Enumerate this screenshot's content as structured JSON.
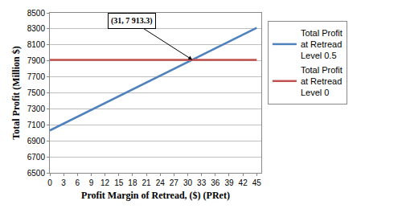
{
  "chart_data": {
    "type": "line",
    "x_label": "Profit Margin of Retread, ($) (PRet)",
    "y_label": "Total Profit (Million $)",
    "x": [
      0,
      3,
      6,
      9,
      12,
      15,
      18,
      21,
      24,
      27,
      30,
      33,
      36,
      39,
      42,
      45
    ],
    "series": [
      {
        "name": "Total Profit at Retread Level 0.5",
        "color": "#4f81bd",
        "values": [
          7030,
          7115,
          7200,
          7286,
          7372,
          7457,
          7543,
          7628,
          7714,
          7800,
          7885,
          7970,
          8056,
          8142,
          8227,
          8313
        ]
      },
      {
        "name": "Total Profit at Retread Level 0",
        "color": "#c0504d",
        "values": [
          7913.3,
          7913.3,
          7913.3,
          7913.3,
          7913.3,
          7913.3,
          7913.3,
          7913.3,
          7913.3,
          7913.3,
          7913.3,
          7913.3,
          7913.3,
          7913.3,
          7913.3,
          7913.3
        ]
      }
    ],
    "xlim": [
      0,
      46
    ],
    "xticks": [
      0,
      3,
      6,
      9,
      12,
      15,
      18,
      21,
      24,
      27,
      30,
      33,
      36,
      39,
      42,
      45
    ],
    "ylim": [
      6500,
      8500
    ],
    "yticks": [
      6500,
      6700,
      6900,
      7100,
      7300,
      7500,
      7700,
      7900,
      8100,
      8300,
      8500
    ],
    "annotations": [
      {
        "text": "(31, 7 913.3)",
        "x": 31,
        "y": 7913.3
      }
    ],
    "grid": true,
    "legend": "right"
  }
}
